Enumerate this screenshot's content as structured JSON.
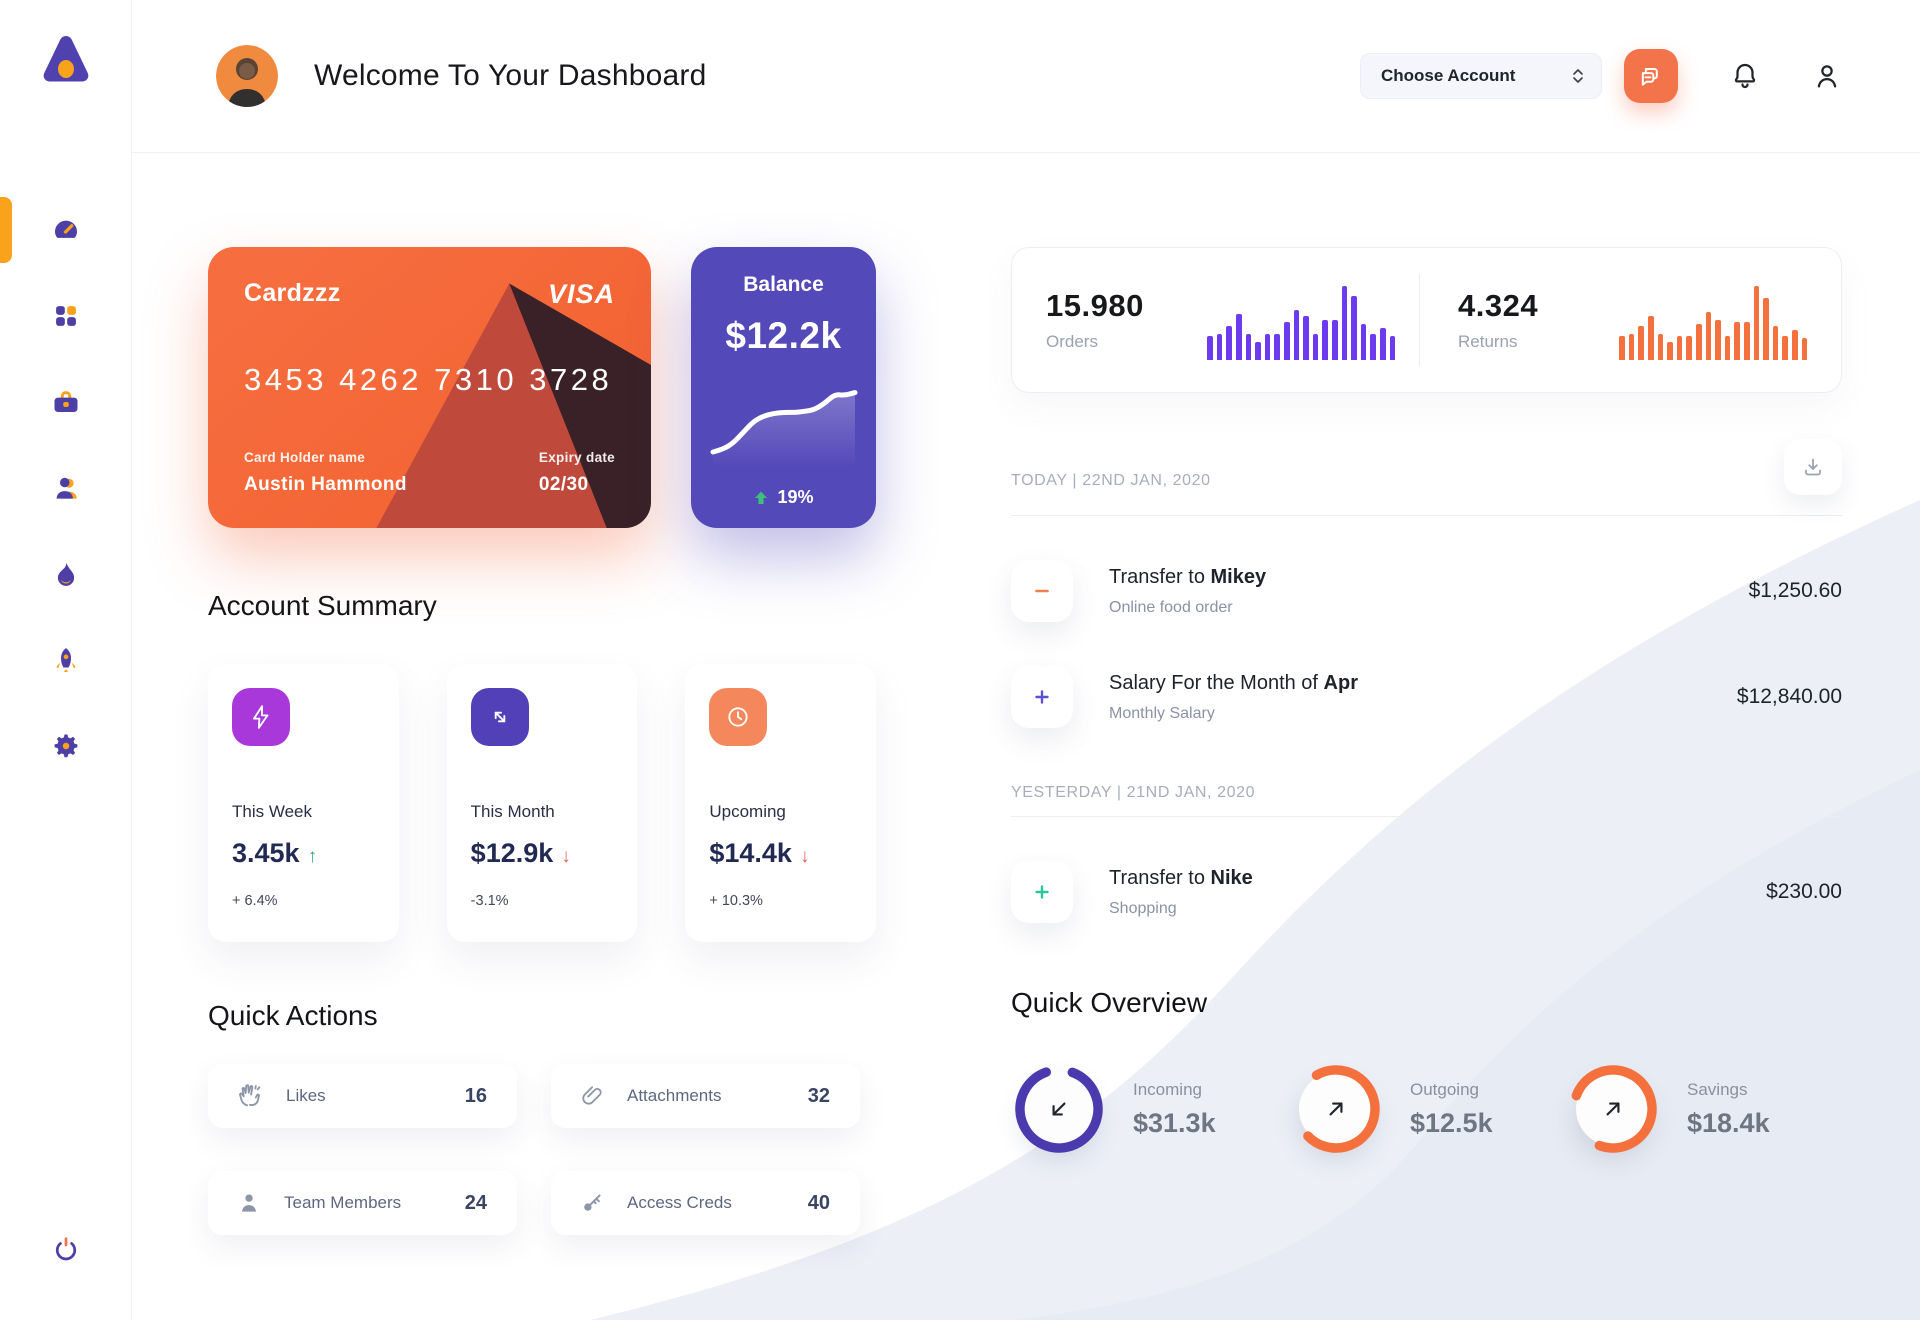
{
  "colors": {
    "accent_orange": "#f3734a",
    "card_orange": "#f4673b",
    "accent_purple": "#5449b9",
    "sidebar_purple": "#4d3fa6",
    "sidebar_orange": "#f9a21b",
    "green_up": "#2fae79",
    "red_down": "#e0635e",
    "bars_purple": "#6c3bf0",
    "bars_orange": "#f4703d",
    "ring_purple": "#4b3aae",
    "ring_orange": "#f4703d"
  },
  "header": {
    "title": "Welcome To Your Dashboard",
    "account_selector": "Choose Account"
  },
  "sidebar": {
    "items": [
      {
        "name": "dashboard",
        "active": true
      },
      {
        "name": "apps",
        "active": false
      },
      {
        "name": "briefcase",
        "active": false
      },
      {
        "name": "team",
        "active": false
      },
      {
        "name": "activity",
        "active": false
      },
      {
        "name": "rocket",
        "active": false
      },
      {
        "name": "settings",
        "active": false
      }
    ],
    "logout": "power"
  },
  "card": {
    "name": "Cardzzz",
    "brand": "VISA",
    "number": "3453 4262 7310 3728",
    "holder_label": "Card Holder name",
    "holder": "Austin Hammond",
    "expiry_label": "Expiry date",
    "expiry": "02/30"
  },
  "balance": {
    "label": "Balance",
    "value": "$12.2k",
    "change": "19%"
  },
  "summary": {
    "title": "Account Summary",
    "cards": [
      {
        "label": "This Week",
        "value": "3.45k",
        "trend": "up",
        "change": "+ 6.4%",
        "icon_bg": "#a838d9"
      },
      {
        "label": "This Month",
        "value": "$12.9k",
        "trend": "down",
        "change": "-3.1%",
        "icon_bg": "#5240b8"
      },
      {
        "label": "Upcoming",
        "value": "$14.4k",
        "trend": "down",
        "change": "+ 10.3%",
        "icon_bg": "#f4875c"
      }
    ]
  },
  "quick_actions": {
    "title": "Quick Actions",
    "items": [
      {
        "label": "Likes",
        "count": "16"
      },
      {
        "label": "Attachments",
        "count": "32"
      },
      {
        "label": "Team Members",
        "count": "24"
      },
      {
        "label": "Access Creds",
        "count": "40"
      }
    ]
  },
  "stats": {
    "orders": {
      "value": "15.980",
      "label": "Orders"
    },
    "returns": {
      "value": "4.324",
      "label": "Returns"
    }
  },
  "transactions": {
    "groups": [
      {
        "date": "TODAY | 22ND JAN, 2020",
        "items": [
          {
            "sign": "minus",
            "sign_color": "#f0814f",
            "title_prefix": "Transfer to ",
            "title_bold": "Mikey",
            "subtitle": "Online food order",
            "amount": "$1,250.60"
          },
          {
            "sign": "plus",
            "sign_color": "#5b4fd6",
            "title_prefix": "Salary For the Month of ",
            "title_bold": "Apr",
            "subtitle": "Monthly Salary",
            "amount": "$12,840.00"
          }
        ]
      },
      {
        "date": "YESTERDAY | 21ND JAN, 2020",
        "items": [
          {
            "sign": "plus",
            "sign_color": "#2ec49c",
            "title_prefix": "Transfer to ",
            "title_bold": "Nike",
            "subtitle": "Shopping",
            "amount": "$230.00"
          }
        ]
      }
    ]
  },
  "overview": {
    "title": "Quick Overview",
    "items": [
      {
        "label": "Incoming",
        "value": "$31.3k",
        "pct": 89,
        "ring": "#4b3aae",
        "rotate": -70,
        "arrow": "down-left"
      },
      {
        "label": "Outgoing",
        "value": "$12.5k",
        "pct": 71,
        "ring": "#f4703d",
        "rotate": -120,
        "arrow": "up-right"
      },
      {
        "label": "Savings",
        "value": "$18.4k",
        "pct": 75,
        "ring": "#f4703d",
        "rotate": -160,
        "arrow": "up-right"
      }
    ]
  },
  "chart_data": [
    {
      "type": "bar",
      "title": "Orders activity",
      "legend": "Orders",
      "color": "#6c3bf0",
      "values": [
        30,
        33,
        42,
        58,
        33,
        22,
        32,
        32,
        48,
        62,
        55,
        32,
        50,
        50,
        92,
        80,
        45,
        32,
        40,
        30
      ]
    },
    {
      "type": "bar",
      "title": "Returns activity",
      "legend": "Returns",
      "color": "#f4703d",
      "values": [
        30,
        33,
        42,
        55,
        32,
        22,
        30,
        30,
        45,
        60,
        50,
        30,
        48,
        48,
        92,
        78,
        42,
        30,
        38,
        28
      ]
    },
    {
      "type": "line",
      "title": "Balance trend",
      "color": "#ffffff",
      "values": [
        10,
        13,
        20,
        32,
        44,
        50,
        53,
        54,
        54,
        55,
        57,
        64,
        74,
        73,
        76
      ]
    }
  ]
}
